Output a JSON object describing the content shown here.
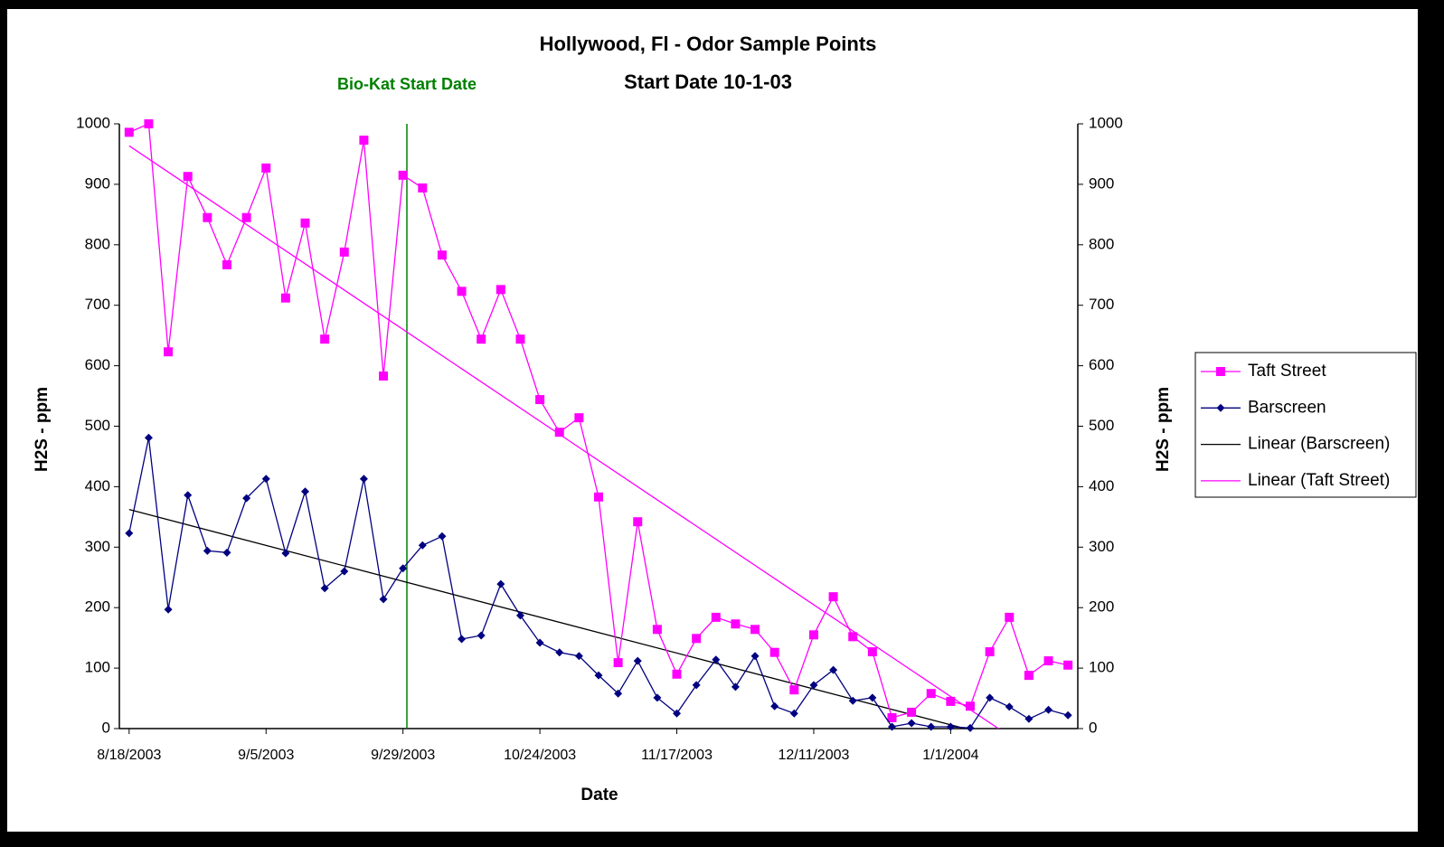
{
  "chart_data": {
    "type": "line",
    "title": "Hollywood, Fl - Odor Sample Points",
    "subtitle": "Start Date 10-1-03",
    "xlabel": "Date",
    "ylabel": "H2S - ppm",
    "y2label": "H2S - ppm",
    "categories": [
      "8/18/2003",
      null,
      null,
      null,
      null,
      null,
      null,
      "9/5/2003",
      null,
      null,
      null,
      null,
      null,
      null,
      "9/29/2003",
      null,
      null,
      null,
      null,
      null,
      null,
      "10/24/2003",
      null,
      null,
      null,
      null,
      null,
      null,
      "11/17/2003",
      null,
      null,
      null,
      null,
      null,
      null,
      "12/11/2003",
      null,
      null,
      null,
      null,
      null,
      null,
      "1/1/2004",
      null,
      null,
      null,
      null,
      null,
      null
    ],
    "series": [
      {
        "name": "Taft Street",
        "color": "#ff00ff",
        "marker": "square",
        "values": [
          986,
          1000,
          623,
          913,
          845,
          767,
          845,
          927,
          712,
          836,
          644,
          788,
          973,
          583,
          915,
          894,
          783,
          723,
          644,
          726,
          644,
          544,
          490,
          514,
          383,
          109,
          342,
          164,
          90,
          149,
          184,
          173,
          164,
          126,
          64,
          155,
          218,
          152,
          127,
          18,
          27,
          58,
          45,
          37,
          127,
          184,
          88,
          112,
          105
        ]
      },
      {
        "name": "Barscreen",
        "color": "#000080",
        "marker": "diamond",
        "values": [
          323,
          481,
          197,
          386,
          294,
          291,
          381,
          413,
          290,
          392,
          232,
          260,
          413,
          214,
          265,
          303,
          318,
          148,
          154,
          239,
          187,
          142,
          126,
          120,
          88,
          58,
          112,
          51,
          25,
          72,
          114,
          69,
          120,
          37,
          25,
          72,
          97,
          46,
          51,
          3,
          9,
          3,
          3,
          1,
          51,
          36,
          16,
          31,
          22
        ]
      }
    ],
    "trendlines": [
      {
        "name": "Linear (Barscreen)",
        "color": "#000000",
        "series": 1
      },
      {
        "name": "Linear (Taft Street)",
        "color": "#ff00ff",
        "series": 0
      }
    ],
    "annotation": {
      "text": "Bio-Kat Start Date",
      "color": "#008000",
      "x": 14.2
    },
    "ylim": [
      0,
      1000
    ],
    "yticks": [
      0,
      100,
      200,
      300,
      400,
      500,
      600,
      700,
      800,
      900,
      1000
    ],
    "y2lim": [
      0,
      1000
    ],
    "y2ticks": [
      0,
      100,
      200,
      300,
      400,
      500,
      600,
      700,
      800,
      900,
      1000
    ],
    "legend": "right"
  }
}
